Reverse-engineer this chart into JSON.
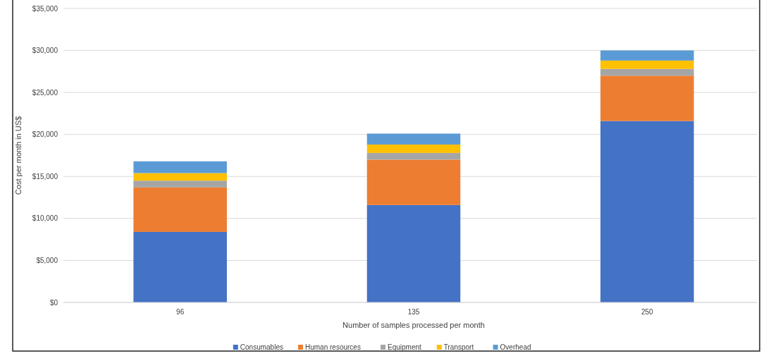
{
  "chart_data": {
    "type": "bar",
    "stacked": true,
    "xlabel": "Number of samples processed per month",
    "ylabel": "Cost per month in US$",
    "categories": [
      "96",
      "135",
      "250"
    ],
    "series": [
      {
        "name": "Consumables",
        "color": "#4472c4",
        "values": [
          8400,
          11600,
          21600
        ]
      },
      {
        "name": "Human resources",
        "color": "#ed7d31",
        "values": [
          5300,
          5400,
          5400
        ]
      },
      {
        "name": "Equipment",
        "color": "#a5a5a5",
        "values": [
          800,
          800,
          800
        ]
      },
      {
        "name": "Transport",
        "color": "#ffc000",
        "values": [
          900,
          1000,
          1000
        ]
      },
      {
        "name": "Overhead",
        "color": "#5b9bd5",
        "values": [
          1400,
          1300,
          1200
        ]
      }
    ],
    "ylim": [
      0,
      35000
    ],
    "yticks": [
      {
        "value": 0,
        "label": "$0"
      },
      {
        "value": 5000,
        "label": "$5,000"
      },
      {
        "value": 10000,
        "label": "$10,000"
      },
      {
        "value": 15000,
        "label": "$15,000"
      },
      {
        "value": 20000,
        "label": "$20,000"
      },
      {
        "value": 25000,
        "label": "$25,000"
      },
      {
        "value": 30000,
        "label": "$30,000"
      },
      {
        "value": 35000,
        "label": "$35,000"
      }
    ],
    "grid": "y",
    "legend": "bottom"
  }
}
